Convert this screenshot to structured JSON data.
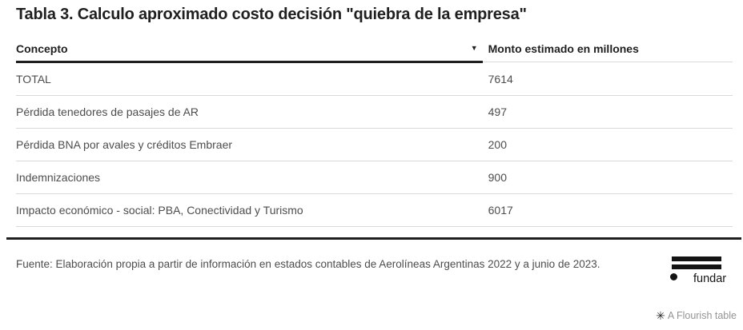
{
  "title": "Tabla 3. Calculo aproximado costo decisión \"quiebra de la empresa\"",
  "table": {
    "header": {
      "concepto": "Concepto",
      "sort_icon": "▼",
      "monto": "Monto estimado en millones"
    },
    "rows": [
      {
        "concepto": "TOTAL",
        "monto": "7614"
      },
      {
        "concepto": "Pérdida tenedores de pasajes de AR",
        "monto": "497"
      },
      {
        "concepto": "Pérdida BNA por avales y créditos Embraer",
        "monto": "200"
      },
      {
        "concepto": "Indemnizaciones",
        "monto": "900"
      },
      {
        "concepto": "Impacto económico - social: PBA, Conectividad y Turismo",
        "monto": "6017"
      }
    ]
  },
  "footer": {
    "source": "Fuente: Elaboración propia a partir de información en estados contables de Aerolíneas Argentinas 2022 y a junio de 2023.",
    "logo_text": "fundar"
  },
  "flourish": {
    "icon": "✳",
    "credit": "A Flourish table"
  },
  "colors": {
    "text_dark": "#1f1f1f",
    "text_row": "#4d4d4d",
    "separator": "#d9d9d9",
    "credit_gray": "#949494"
  },
  "chart_data": {
    "type": "table",
    "title": "Tabla 3. Calculo aproximado costo decisión \"quiebra de la empresa\"",
    "columns": [
      "Concepto",
      "Monto estimado en millones"
    ],
    "rows": [
      [
        "TOTAL",
        7614
      ],
      [
        "Pérdida tenedores de pasajes de AR",
        497
      ],
      [
        "Pérdida BNA por avales y créditos Embraer",
        200
      ],
      [
        "Indemnizaciones",
        900
      ],
      [
        "Impacto económico - social: PBA, Conectividad y Turismo",
        6017
      ]
    ],
    "sorted_column": "Concepto",
    "sort_direction": "desc",
    "source": "Elaboración propia a partir de información en estados contables de Aerolíneas Argentinas 2022 y a junio de 2023."
  }
}
